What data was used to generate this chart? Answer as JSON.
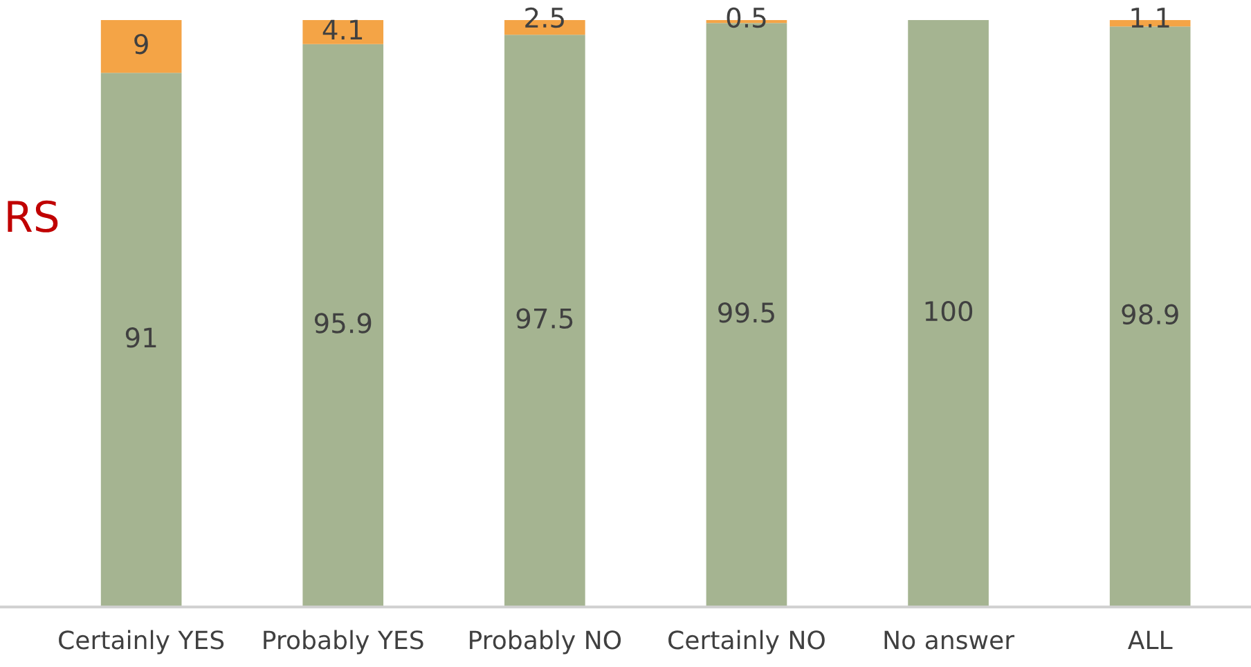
{
  "chart_data": {
    "type": "bar",
    "stacked": true,
    "data_labels": true,
    "categories": [
      "Certainly YES",
      "Probably YES",
      "Probably NO",
      "Certainly NO",
      "No answer",
      "ALL"
    ],
    "series": [
      {
        "color": "#a5b491",
        "values": [
          91,
          95.9,
          97.5,
          99.5,
          100,
          98.9
        ]
      },
      {
        "color": "#f4a446",
        "values": [
          9,
          4.1,
          2.5,
          0.5,
          null,
          1.1
        ]
      }
    ],
    "annotations": [
      "RS"
    ]
  }
}
